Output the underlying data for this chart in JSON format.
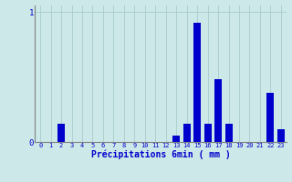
{
  "xlabel": "Précipitations 6min ( mm )",
  "bar_color": "#0000cc",
  "background_color": "#cce8e8",
  "grid_color": "#aacccc",
  "axis_color": "#808080",
  "text_color": "#0000cc",
  "ylim": [
    0,
    1.05
  ],
  "xlim": [
    -0.5,
    23.5
  ],
  "yticks": [
    0,
    1
  ],
  "xticks": [
    0,
    1,
    2,
    3,
    4,
    5,
    6,
    7,
    8,
    9,
    10,
    11,
    12,
    13,
    14,
    15,
    16,
    17,
    18,
    19,
    20,
    21,
    22,
    23
  ],
  "values": [
    0,
    0,
    0.14,
    0,
    0,
    0,
    0,
    0,
    0,
    0,
    0,
    0,
    0,
    0.05,
    0.14,
    0.92,
    0.14,
    0.48,
    0.14,
    0,
    0,
    0,
    0.38,
    0.1
  ],
  "bar_width": 0.7
}
